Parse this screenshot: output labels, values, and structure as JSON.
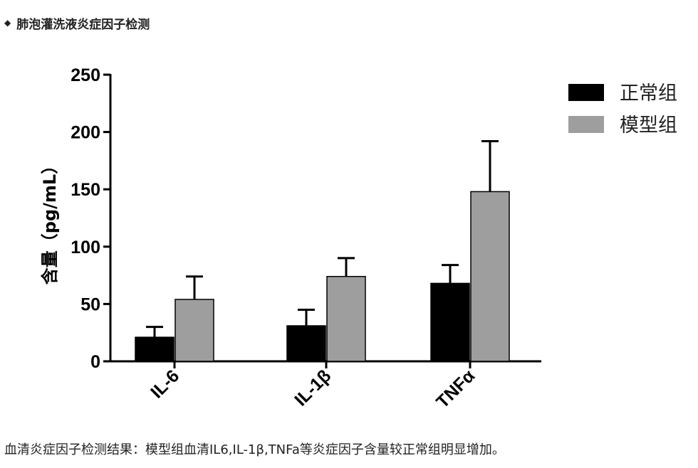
{
  "heading": {
    "text": "肺泡灌洗液炎症因子检测",
    "bullet_icon": "diamond-icon"
  },
  "caption": "血清炎症因子检测结果：模型组血清IL6,IL-1β,TNFa等炎症因子含量较正常组明显增加。",
  "chart_data": {
    "type": "bar",
    "categories": [
      "IL-6",
      "IL-1β",
      "TNFα"
    ],
    "series": [
      {
        "name": "正常组",
        "values": [
          21,
          31,
          68
        ],
        "errors": [
          9,
          14,
          16
        ],
        "color": "#000000"
      },
      {
        "name": "模型组",
        "values": [
          54,
          74,
          148
        ],
        "errors": [
          20,
          16,
          44
        ],
        "color": "#9e9e9e"
      }
    ],
    "ylabel": "含量（pg/mL）",
    "ylim": [
      0,
      250
    ],
    "yticks": [
      0,
      50,
      100,
      150,
      200,
      250
    ],
    "grid": false,
    "legend_position": "top-right"
  }
}
